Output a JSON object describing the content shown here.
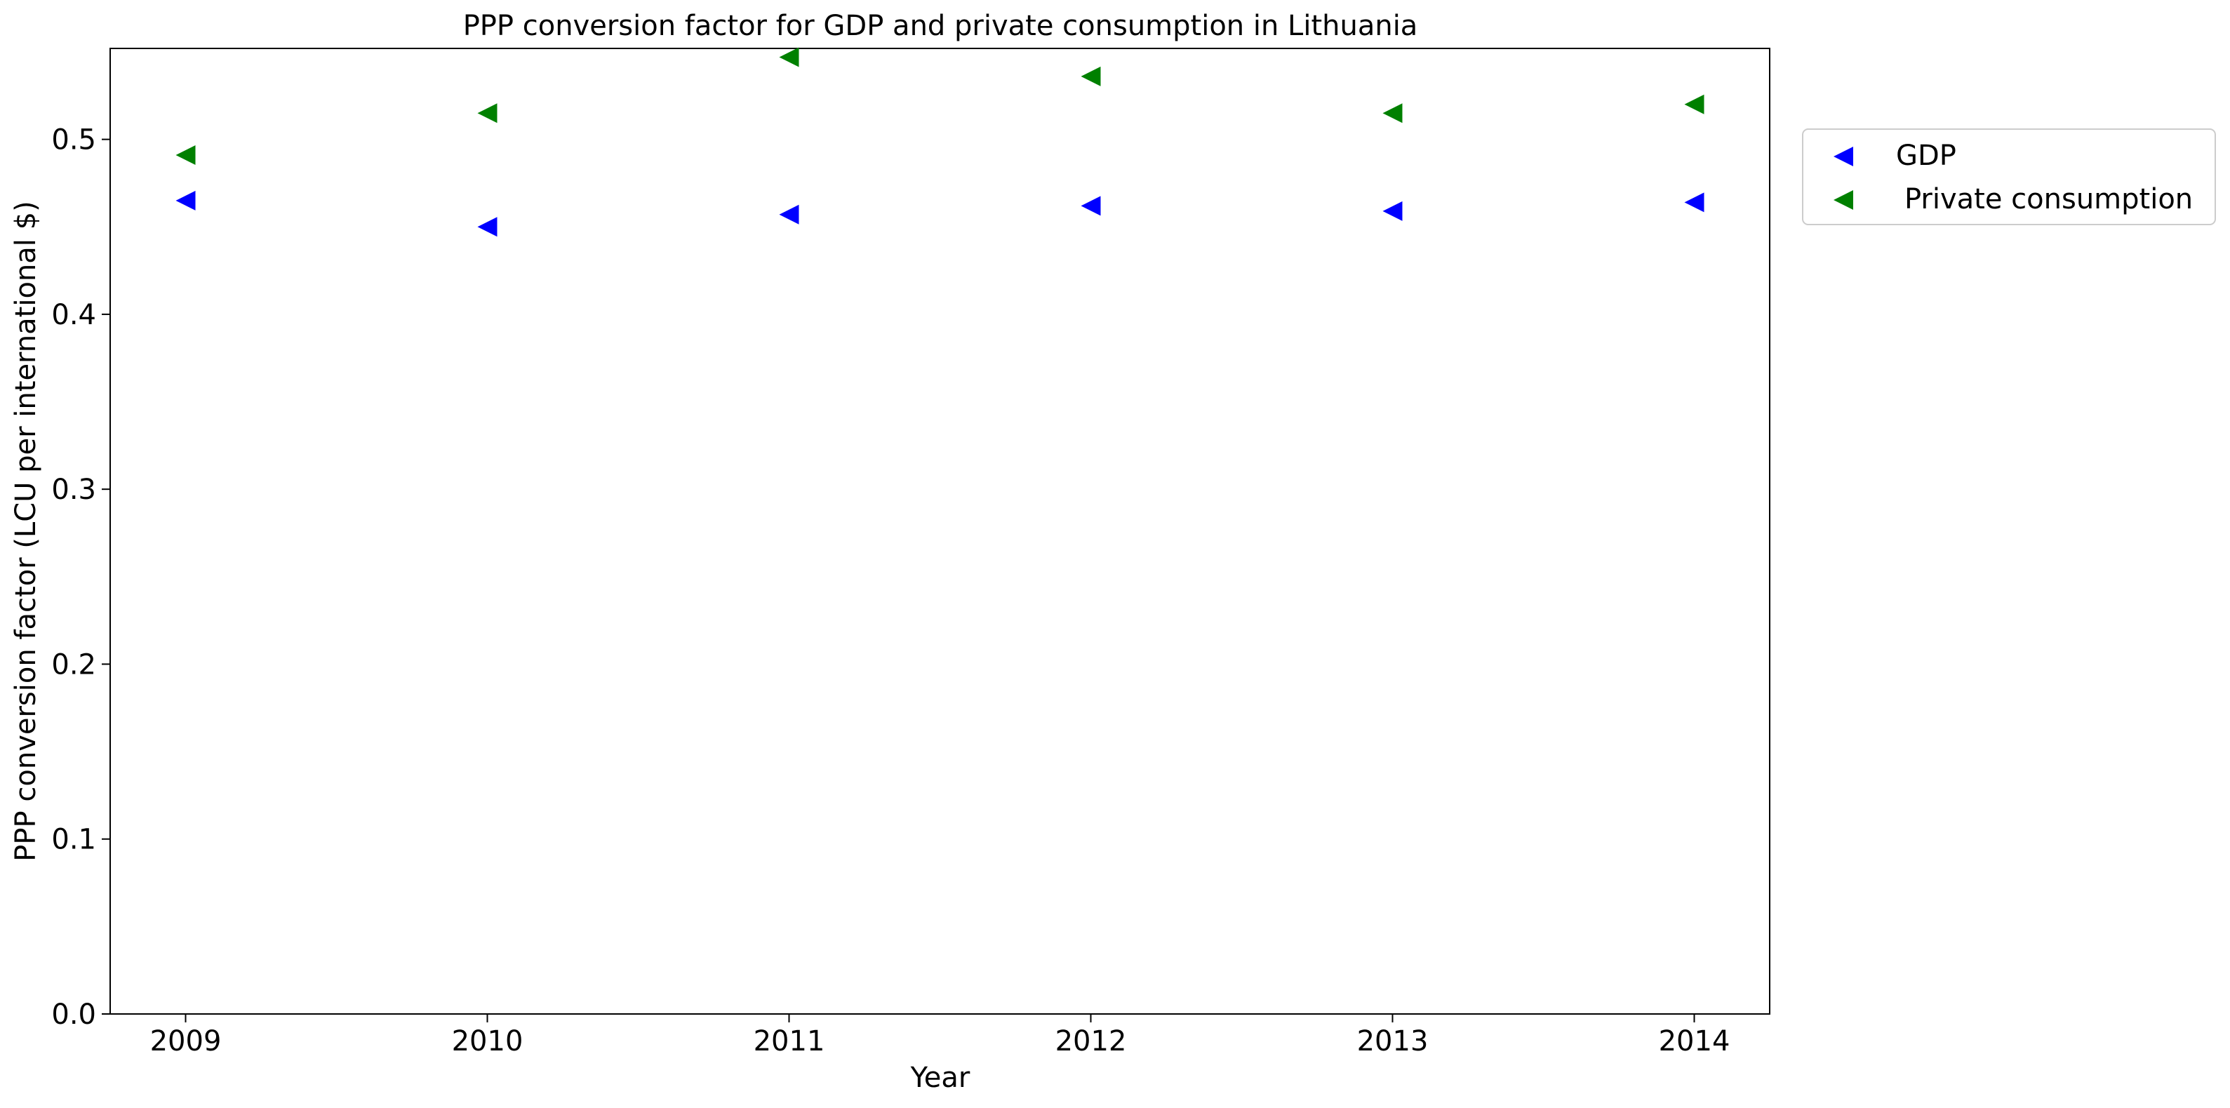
{
  "chart_data": {
    "type": "scatter",
    "title": "PPP conversion factor for GDP and private consumption in Lithuania",
    "xlabel": "Year",
    "ylabel": "PPP conversion factor (LCU per international $)",
    "x": [
      2009,
      2010,
      2011,
      2012,
      2013,
      2014
    ],
    "x_tick_labels": [
      "2009",
      "2010",
      "2011",
      "2012",
      "2013",
      "2014"
    ],
    "y_ticks": [
      0.0,
      0.1,
      0.2,
      0.3,
      0.4,
      0.5
    ],
    "y_tick_labels": [
      "0.0",
      "0.1",
      "0.2",
      "0.3",
      "0.4",
      "0.5"
    ],
    "xlim": [
      2008.75,
      2014.25
    ],
    "ylim": [
      0.0,
      0.552
    ],
    "grid": false,
    "legend_position": "outside upper right",
    "marker": "triangle-left",
    "series": [
      {
        "name": "GDP",
        "color": "#0000ff",
        "values": [
          0.465,
          0.45,
          0.457,
          0.462,
          0.459,
          0.464
        ]
      },
      {
        "name": "Private consumption",
        "color": "#008000",
        "values": [
          0.491,
          0.515,
          0.547,
          0.536,
          0.515,
          0.52
        ]
      }
    ]
  }
}
